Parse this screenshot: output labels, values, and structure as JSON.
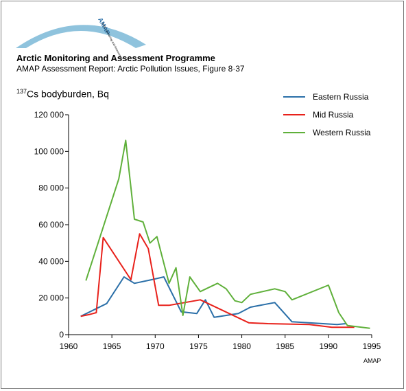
{
  "header": {
    "logo_text": "AMAP",
    "logo_subtext": "Arctic Monitoring and Assessment Programme",
    "title": "Arctic Monitoring and Assessment Programme",
    "subtitle": "AMAP Assessment Report: Arctic Pollution Issues, Figure 8·37"
  },
  "credit": "AMAP",
  "colors": {
    "eastern": "#2a6fa8",
    "mid": "#e8211b",
    "western": "#5fb03a",
    "logo": "#8fc3dd"
  },
  "chart_data": {
    "type": "line",
    "ylabel_sup": "137",
    "ylabel_main": "Cs bodyburden, Bq",
    "xlabel": "",
    "xlim": [
      1960,
      1995
    ],
    "ylim": [
      0,
      120000
    ],
    "xticks": [
      1960,
      1965,
      1970,
      1975,
      1980,
      1985,
      1990,
      1995
    ],
    "xtick_labels": [
      "1960",
      "1965",
      "1970",
      "1975",
      "1980",
      "1985",
      "1990",
      "1995"
    ],
    "yticks": [
      0,
      20000,
      40000,
      60000,
      80000,
      100000,
      120000
    ],
    "ytick_labels": [
      "0",
      "20 000",
      "40 000",
      "60 000",
      "80 000",
      "100 000",
      "120 000"
    ],
    "grid": false,
    "legend_position": "top-right",
    "series": [
      {
        "name": "Eastern Russia",
        "color": "#2a6fa8",
        "x": [
          1961.4,
          1964.4,
          1966.4,
          1967.6,
          1969.6,
          1971.0,
          1973.0,
          1974.8,
          1975.8,
          1976.8,
          1979.6,
          1981.0,
          1983.8,
          1985.8,
          1991.0,
          1992.0
        ],
        "y": [
          10000,
          17000,
          31500,
          28000,
          30000,
          31500,
          12500,
          11500,
          19000,
          9500,
          11500,
          15000,
          17500,
          7000,
          5500,
          6000
        ]
      },
      {
        "name": "Mid Russia",
        "color": "#e8211b",
        "x": [
          1961.4,
          1962.4,
          1963.2,
          1964.0,
          1967.2,
          1968.2,
          1969.2,
          1970.4,
          1971.6,
          1975.2,
          1980.8,
          1983.0,
          1987.8,
          1990.4,
          1993.0
        ],
        "y": [
          10000,
          11000,
          12000,
          53000,
          30000,
          55000,
          47000,
          16000,
          16000,
          19000,
          6500,
          6000,
          5500,
          4000,
          4000
        ]
      },
      {
        "name": "Western Russia",
        "color": "#5fb03a",
        "x": [
          1962.0,
          1965.8,
          1966.6,
          1967.6,
          1968.6,
          1969.4,
          1970.2,
          1971.6,
          1972.4,
          1973.2,
          1974.0,
          1975.2,
          1977.2,
          1978.2,
          1979.2,
          1980.0,
          1981.0,
          1983.8,
          1985.0,
          1985.8,
          1990.0,
          1991.2,
          1992.2,
          1994.8
        ],
        "y": [
          29500,
          85000,
          106000,
          63000,
          61500,
          50000,
          53500,
          28000,
          36500,
          10500,
          31500,
          23500,
          28000,
          25000,
          18500,
          17500,
          22000,
          25000,
          23500,
          19000,
          27000,
          12000,
          5000,
          3500
        ]
      }
    ]
  }
}
